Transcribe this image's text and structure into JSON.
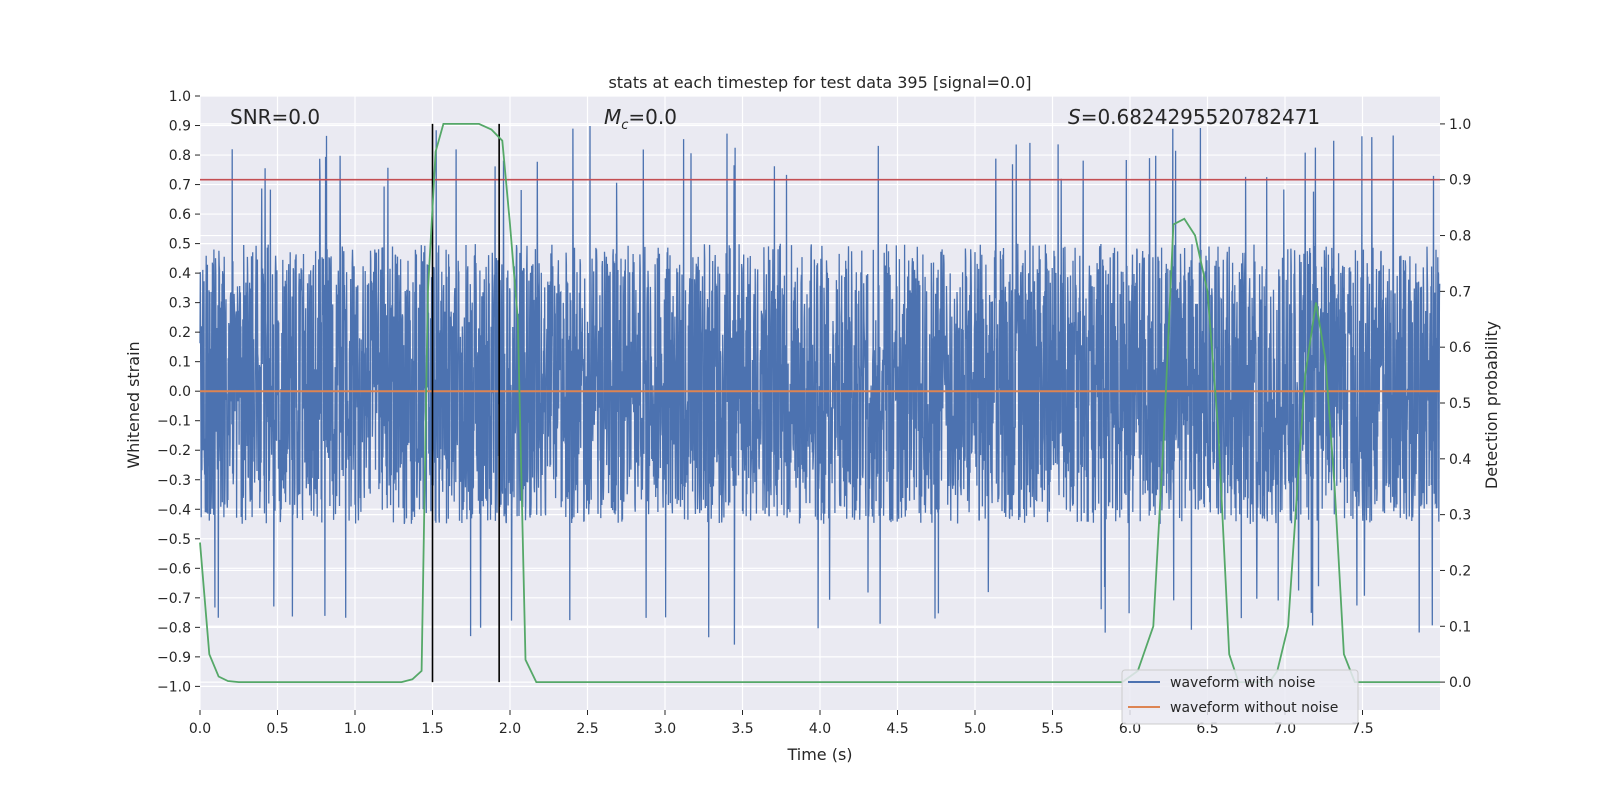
{
  "chart_data": {
    "type": "line",
    "title": "stats at each timestep for test data 395 [signal=0.0]",
    "xlabel": "Time (s)",
    "ylabel": "Whitened strain",
    "y2label": "Detection probability",
    "xlim": [
      0.0,
      8.0
    ],
    "ylim": [
      -1.08,
      1.0
    ],
    "y2lim": [
      -0.05,
      1.05
    ],
    "x_ticks": [
      "0.0",
      "0.5",
      "1.0",
      "1.5",
      "2.0",
      "2.5",
      "3.0",
      "3.5",
      "4.0",
      "4.5",
      "5.0",
      "5.5",
      "6.0",
      "6.5",
      "7.0",
      "7.5"
    ],
    "y_ticks": [
      "1.0",
      "0.9",
      "0.8",
      "0.7",
      "0.6",
      "0.5",
      "0.4",
      "0.3",
      "0.2",
      "0.1",
      "0.0",
      "−0.1",
      "−0.2",
      "−0.3",
      "−0.4",
      "−0.5",
      "−0.6",
      "−0.7",
      "−0.8",
      "−0.9",
      "−1.0"
    ],
    "y2_ticks": [
      "1.0",
      "0.9",
      "0.8",
      "0.7",
      "0.6",
      "0.5",
      "0.4",
      "0.3",
      "0.2",
      "0.1",
      "0.0"
    ],
    "grid": true,
    "legend_position": "bottom-right",
    "annotations": {
      "snr": "SNR=0.0",
      "mc_symbol": "M",
      "mc_sub": "c",
      "mc_value": "=0.0",
      "s_symbol": "S",
      "s_value": "=0.6824295520782471"
    },
    "threshold_y2": 0.9,
    "vertical_markers_x": [
      1.5,
      1.93
    ],
    "series": [
      {
        "name": "waveform with noise",
        "kind": "noise",
        "typical_range": [
          -0.45,
          0.5
        ],
        "peak_range": [
          -0.88,
          0.9
        ],
        "color": "#4c72b0"
      },
      {
        "name": "waveform without noise",
        "kind": "constant",
        "value": 0.0,
        "color": "#dd8452"
      },
      {
        "name": "detection probability",
        "axis": "y2",
        "color": "#55a868",
        "x": [
          0.0,
          0.06,
          0.12,
          0.18,
          0.25,
          0.5,
          1.0,
          1.3,
          1.37,
          1.43,
          1.47,
          1.52,
          1.57,
          1.65,
          1.8,
          1.88,
          1.95,
          2.0,
          2.05,
          2.1,
          2.17,
          2.5,
          3.0,
          4.0,
          5.0,
          5.5,
          5.95,
          6.05,
          6.15,
          6.22,
          6.28,
          6.35,
          6.42,
          6.5,
          6.57,
          6.64,
          6.7,
          6.8,
          6.9,
          6.95,
          7.02,
          7.08,
          7.13,
          7.2,
          7.26,
          7.32,
          7.38,
          7.45,
          7.6,
          8.0
        ],
        "values": [
          0.25,
          0.05,
          0.01,
          0.002,
          0.0,
          0.0,
          0.0,
          0.0,
          0.005,
          0.02,
          0.7,
          0.95,
          1.0,
          1.0,
          1.0,
          0.99,
          0.97,
          0.82,
          0.65,
          0.04,
          0.0,
          0.0,
          0.0,
          0.0,
          0.0,
          0.0,
          0.0,
          0.02,
          0.1,
          0.45,
          0.82,
          0.83,
          0.8,
          0.7,
          0.45,
          0.05,
          0.0,
          0.0,
          0.0,
          0.02,
          0.1,
          0.35,
          0.55,
          0.68,
          0.58,
          0.35,
          0.05,
          0.0,
          0.0,
          0.0
        ]
      }
    ]
  }
}
